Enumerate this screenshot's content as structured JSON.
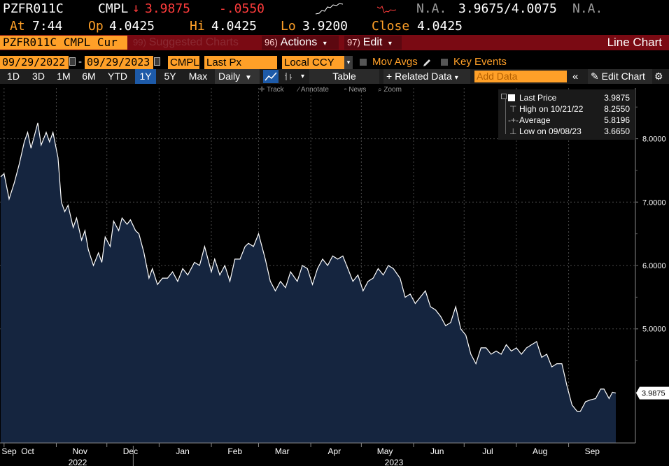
{
  "quote": {
    "ticker": "PZFR011C",
    "index": "CMPL",
    "arrow": "↓",
    "last": "3.9875",
    "change": "-.0550",
    "na1": "N.A.",
    "bid_ask": "3.9675/4.0075",
    "na2": "N.A.",
    "at_label": "At",
    "at_time": "7:44",
    "op_label": "Op",
    "op": "4.0425",
    "hi_label": "Hi",
    "hi": "4.0425",
    "lo_label": "Lo",
    "lo": "3.9200",
    "close_label": "Close",
    "close": "4.0425"
  },
  "toolbar": {
    "security": "PZFR011C CMPL Cur",
    "suggested_num": "99)",
    "suggested": "Suggested Charts",
    "actions_num": "96)",
    "actions": "Actions",
    "edit_num": "97)",
    "edit": "Edit",
    "title": "Line Chart"
  },
  "controls": {
    "start_date": "09/29/2022",
    "end_date": "09/29/2023",
    "source": "CMPL",
    "field": "Last Px",
    "currency": "Local CCY",
    "mov_avgs": "Mov Avgs",
    "key_events": "Key Events"
  },
  "ranges": {
    "items": [
      "1D",
      "3D",
      "1M",
      "6M",
      "YTD",
      "1Y",
      "5Y",
      "Max"
    ],
    "active": "1Y",
    "frequency": "Daily",
    "table": "Table",
    "related": "Related Data",
    "add_data_placeholder": "Add Data",
    "edit_chart": "Edit Chart"
  },
  "mini_toolbar": {
    "track": "Track",
    "annotate": "Annotate",
    "news": "News",
    "zoom": "Zoom"
  },
  "legend": {
    "last_label": "Last Price",
    "last_value": "3.9875",
    "high_label": "High on 10/21/22",
    "high_value": "8.2550",
    "avg_label": "Average",
    "avg_value": "5.8196",
    "low_label": "Low on 09/08/23",
    "low_value": "3.6650"
  },
  "chart_data": {
    "type": "area",
    "series": [
      {
        "name": "Last Price"
      }
    ],
    "x_start": "2022-09-29",
    "x_end": "2023-09-29",
    "month_labels": [
      "Sep",
      "Oct",
      "Nov",
      "Dec",
      "Jan",
      "Feb",
      "Mar",
      "Apr",
      "May",
      "Jun",
      "Jul",
      "Aug",
      "Sep"
    ],
    "year_labels": [
      "2022",
      "2023"
    ],
    "y_ticks": [
      "8.0000",
      "7.0000",
      "6.0000",
      "5.0000"
    ],
    "ylim": [
      3.2,
      8.8
    ],
    "last_value_label": "3.9875",
    "grid": true,
    "colors": {
      "line": "#ffffff",
      "fill": "#15253f",
      "grid": "#4a4a4a",
      "background": "#000000"
    },
    "dates": [
      "2022-09-29",
      "2022-10-01",
      "2022-10-04",
      "2022-10-07",
      "2022-10-10",
      "2022-10-13",
      "2022-10-15",
      "2022-10-17",
      "2022-10-19",
      "2022-10-21",
      "2022-10-23",
      "2022-10-26",
      "2022-10-28",
      "2022-10-30",
      "2022-11-02",
      "2022-11-04",
      "2022-11-06",
      "2022-11-08",
      "2022-11-11",
      "2022-11-13",
      "2022-11-16",
      "2022-11-18",
      "2022-11-20",
      "2022-11-23",
      "2022-11-26",
      "2022-11-28",
      "2022-11-30",
      "2022-12-03",
      "2022-12-05",
      "2022-12-08",
      "2022-12-10",
      "2022-12-13",
      "2022-12-15",
      "2022-12-18",
      "2022-12-20",
      "2022-12-23",
      "2022-12-26",
      "2022-12-28",
      "2022-12-31",
      "2023-01-03",
      "2023-01-06",
      "2023-01-09",
      "2023-01-12",
      "2023-01-15",
      "2023-01-18",
      "2023-01-22",
      "2023-01-25",
      "2023-01-28",
      "2023-02-01",
      "2023-02-03",
      "2023-02-06",
      "2023-02-09",
      "2023-02-12",
      "2023-02-15",
      "2023-02-18",
      "2023-02-21",
      "2023-02-23",
      "2023-02-26",
      "2023-03-01",
      "2023-03-05",
      "2023-03-08",
      "2023-03-11",
      "2023-03-14",
      "2023-03-17",
      "2023-03-20",
      "2023-03-24",
      "2023-03-27",
      "2023-03-30",
      "2023-04-02",
      "2023-04-05",
      "2023-04-08",
      "2023-04-11",
      "2023-04-14",
      "2023-04-17",
      "2023-04-20",
      "2023-04-23",
      "2023-04-26",
      "2023-04-29",
      "2023-05-02",
      "2023-05-05",
      "2023-05-08",
      "2023-05-11",
      "2023-05-14",
      "2023-05-17",
      "2023-05-20",
      "2023-05-24",
      "2023-05-27",
      "2023-05-30",
      "2023-06-02",
      "2023-06-05",
      "2023-06-08",
      "2023-06-11",
      "2023-06-14",
      "2023-06-17",
      "2023-06-20",
      "2023-06-23",
      "2023-06-26",
      "2023-06-29",
      "2023-07-02",
      "2023-07-05",
      "2023-07-08",
      "2023-07-11",
      "2023-07-14",
      "2023-07-17",
      "2023-07-20",
      "2023-07-23",
      "2023-07-26",
      "2023-07-29",
      "2023-08-01",
      "2023-08-04",
      "2023-08-07",
      "2023-08-10",
      "2023-08-13",
      "2023-08-16",
      "2023-08-19",
      "2023-08-22",
      "2023-08-25",
      "2023-08-28",
      "2023-08-31",
      "2023-09-03",
      "2023-09-06",
      "2023-09-08",
      "2023-09-11",
      "2023-09-14",
      "2023-09-17",
      "2023-09-20",
      "2023-09-22",
      "2023-09-25",
      "2023-09-27",
      "2023-09-29"
    ],
    "values": [
      7.4,
      7.45,
      7.05,
      7.3,
      7.6,
      7.95,
      8.1,
      7.85,
      8.05,
      8.25,
      7.9,
      8.1,
      7.95,
      8.1,
      7.7,
      7.0,
      6.85,
      6.95,
      6.6,
      6.75,
      6.4,
      6.55,
      6.25,
      6.0,
      6.2,
      6.05,
      6.45,
      6.3,
      6.7,
      6.55,
      6.75,
      6.65,
      6.72,
      6.55,
      6.5,
      6.2,
      5.8,
      5.95,
      5.7,
      5.8,
      5.8,
      5.9,
      5.75,
      5.95,
      5.85,
      6.05,
      6.0,
      6.3,
      5.9,
      6.1,
      5.85,
      6.0,
      5.75,
      6.1,
      6.1,
      6.3,
      6.35,
      6.3,
      6.5,
      6.1,
      5.75,
      5.6,
      5.75,
      5.65,
      5.9,
      5.75,
      6.0,
      5.95,
      5.7,
      5.95,
      6.1,
      6.0,
      6.15,
      6.1,
      6.15,
      5.95,
      5.75,
      5.85,
      5.6,
      5.75,
      5.8,
      5.95,
      5.85,
      6.0,
      5.95,
      5.8,
      5.5,
      5.55,
      5.4,
      5.5,
      5.6,
      5.35,
      5.3,
      5.2,
      5.05,
      5.1,
      5.35,
      5.0,
      4.9,
      4.6,
      4.45,
      4.7,
      4.7,
      4.6,
      4.65,
      4.6,
      4.75,
      4.65,
      4.7,
      4.6,
      4.7,
      4.75,
      4.8,
      4.55,
      4.6,
      4.4,
      4.45,
      4.45,
      4.1,
      3.8,
      3.7,
      3.7,
      3.85,
      3.88,
      3.9,
      4.05,
      4.05,
      3.9,
      4.0,
      3.9875
    ]
  }
}
